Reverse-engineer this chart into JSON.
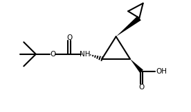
{
  "bg_color": "#ffffff",
  "line_color": "#000000",
  "line_width": 1.5,
  "fig_width": 2.76,
  "fig_height": 1.63,
  "dpi": 100,
  "xlim": [
    0,
    10
  ],
  "ylim": [
    0,
    6
  ]
}
